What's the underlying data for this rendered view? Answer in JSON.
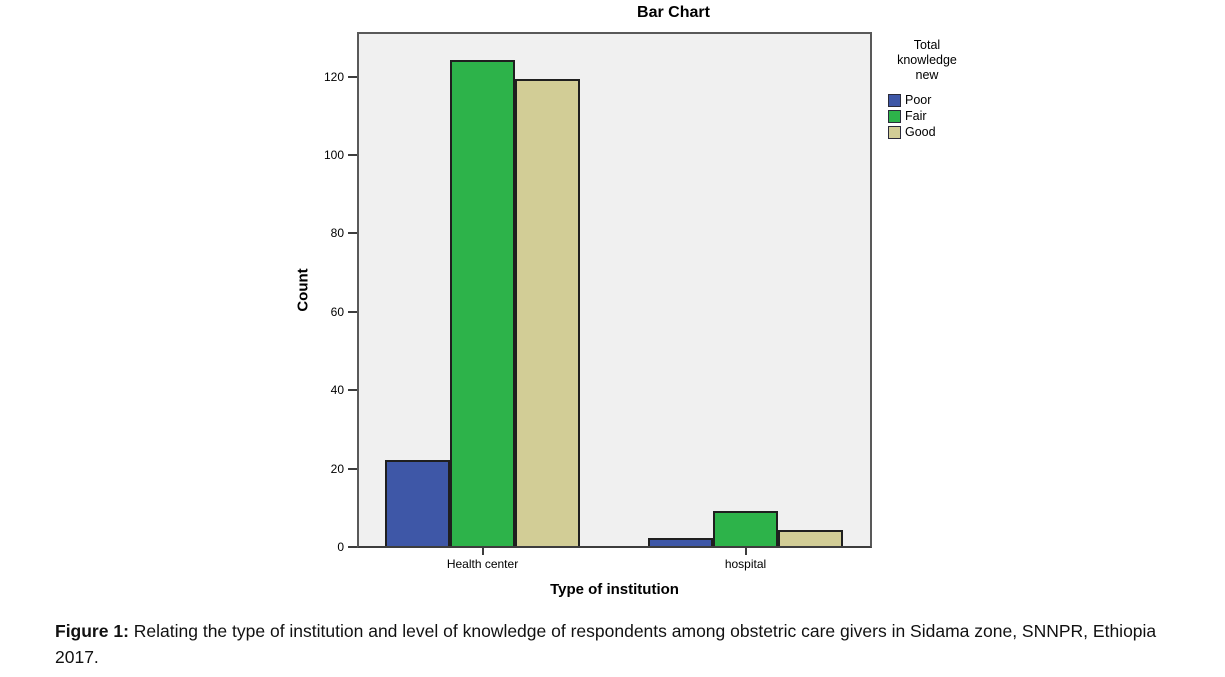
{
  "figure": {
    "caption_label": "Figure 1:",
    "caption_text": " Relating the type of institution and level of knowledge of respondents among obstetric care givers in Sidama zone, SNNPR, Ethiopia 2017."
  },
  "chart_data": {
    "type": "bar",
    "title": "Bar Chart",
    "xlabel": "Type of institution",
    "ylabel": "Count",
    "categories": [
      "Health center",
      "hospital"
    ],
    "series": [
      {
        "name": "Poor",
        "color": "#3E57A7",
        "values": [
          22,
          2
        ]
      },
      {
        "name": "Fair",
        "color": "#2DB34A",
        "values": [
          124,
          9
        ]
      },
      {
        "name": "Good",
        "color": "#D2CD96",
        "values": [
          119,
          4
        ]
      }
    ],
    "yticks": [
      0,
      20,
      40,
      60,
      80,
      100,
      120
    ],
    "ylim": [
      0,
      131
    ],
    "grid": false,
    "legend": {
      "title": "Total knowledge new",
      "position": "right",
      "entries": [
        "Poor",
        "Fair",
        "Good"
      ]
    },
    "colors": {
      "plot_background": "#F0F0F0",
      "frame_border": "#595959",
      "bar_border": "#1F1F1F"
    }
  }
}
